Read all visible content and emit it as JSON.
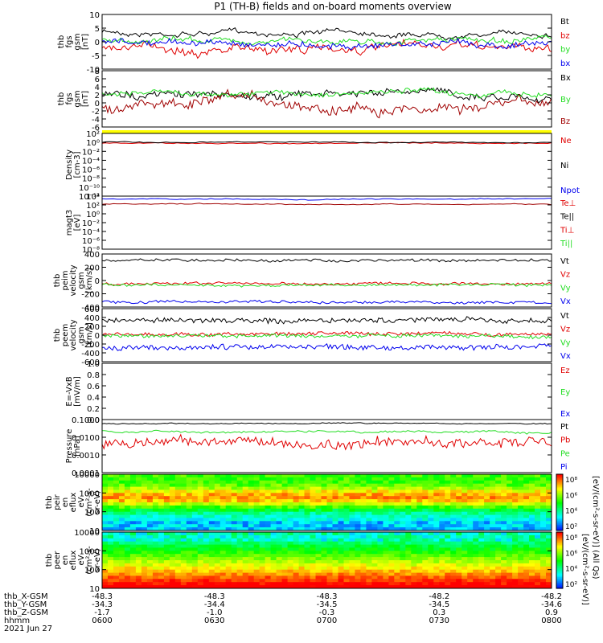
{
  "title": "P1 (TH-B) fields and on-board moments overview",
  "colors": {
    "black": "#000000",
    "red": "#e00000",
    "green": "#22dd22",
    "blue": "#0000ee",
    "darkred": "#a00000",
    "yellow": "#ffff00"
  },
  "panels": [
    {
      "id": "fgs_gsm",
      "ylabel": [
        "thb",
        "fgs",
        "gsm",
        "[nT]"
      ],
      "ticks": [
        "10",
        "5",
        "0",
        "-5",
        "-10"
      ],
      "legend": [
        {
          "text": "Bt",
          "color": "black"
        },
        {
          "text": "bz",
          "color": "red"
        },
        {
          "text": "by",
          "color": "green"
        },
        {
          "text": "bx",
          "color": "blue"
        }
      ]
    },
    {
      "id": "fgs_gsm_cal",
      "ylabel": [
        "thb",
        "fgs",
        "gsm",
        "[nT]"
      ],
      "ticks": [
        "8",
        "6",
        "4",
        "2",
        "0",
        "-2",
        "-4",
        "-6"
      ],
      "legend": [
        {
          "text": "Bx",
          "color": "black"
        },
        {
          "text": "By",
          "color": "green"
        },
        {
          "text": "Bz",
          "color": "darkred"
        }
      ]
    },
    {
      "id": "density",
      "ylabel": [
        "Density",
        "[cm-3]"
      ],
      "ticks": [
        "10²",
        "10⁰",
        "10⁻²",
        "10⁻⁴",
        "10⁻⁶",
        "10⁻⁸",
        "10⁻¹⁰",
        "10⁻¹²"
      ],
      "legend": [
        {
          "text": "Ne",
          "color": "red"
        },
        {
          "text": "Ni",
          "color": "black"
        },
        {
          "text": "Npot",
          "color": "blue"
        }
      ]
    },
    {
      "id": "temp",
      "ylabel": [
        "magt3",
        "[eV]"
      ],
      "ticks": [
        "10⁴",
        "10²",
        "10⁰",
        "10⁻²",
        "10⁻⁴",
        "10⁻⁶",
        "10⁻⁸"
      ],
      "legend": [
        {
          "text": "Te⊥",
          "color": "red"
        },
        {
          "text": "Te||",
          "color": "black"
        },
        {
          "text": "Ti⊥",
          "color": "red"
        },
        {
          "text": "Ti||",
          "color": "green"
        }
      ]
    },
    {
      "id": "peim_vel",
      "ylabel": [
        "thb",
        "peim",
        "velocity",
        "gsm",
        "[km/s]"
      ],
      "ticks": [
        "400",
        "200",
        "0",
        "-200",
        "-400"
      ],
      "legend": [
        {
          "text": "Vt",
          "color": "black"
        },
        {
          "text": "Vz",
          "color": "red"
        },
        {
          "text": "Vy",
          "color": "green"
        },
        {
          "text": "Vx",
          "color": "blue"
        }
      ]
    },
    {
      "id": "peem_vel",
      "ylabel": [
        "thb",
        "peem",
        "velocity",
        "gsm",
        "[km/s]"
      ],
      "ticks": [
        "600",
        "400",
        "200",
        "0",
        "-200",
        "-400",
        "-600"
      ],
      "legend": [
        {
          "text": "Vt",
          "color": "black"
        },
        {
          "text": "Vz",
          "color": "red"
        },
        {
          "text": "Vy",
          "color": "green"
        },
        {
          "text": "Vx",
          "color": "blue"
        }
      ]
    },
    {
      "id": "efield",
      "ylabel": [
        "E=-VxB",
        "[mV/m]"
      ],
      "ticks": [
        "1.0",
        "0.8",
        "0.6",
        "0.4",
        "0.2",
        "0.0"
      ],
      "legend": [
        {
          "text": "Ez",
          "color": "red"
        },
        {
          "text": "Ey",
          "color": "green"
        },
        {
          "text": "Ex",
          "color": "blue"
        }
      ]
    },
    {
      "id": "pressure",
      "ylabel": [
        "Pressure",
        "[nPa]"
      ],
      "ticks": [
        "0.1000",
        "0.0100",
        "0.0010",
        "0.0001"
      ],
      "legend": [
        {
          "text": "Pt",
          "color": "black"
        },
        {
          "text": "Pb",
          "color": "red"
        },
        {
          "text": "Pe",
          "color": "green"
        },
        {
          "text": "Pi",
          "color": "blue"
        }
      ]
    },
    {
      "id": "peir_spec",
      "ylabel": [
        "thb",
        "peir",
        "en",
        "eflux",
        "eV",
        "(cm²-s-",
        "sr-eV)"
      ],
      "ticks": [
        "10000",
        "1000",
        "100",
        "10"
      ]
    },
    {
      "id": "peer_spec",
      "ylabel": [
        "thb",
        "peer",
        "en",
        "eflux",
        "eV",
        "(cm²-s-",
        "sr-eV)"
      ],
      "ticks": [
        "10000",
        "1000",
        "100",
        "10"
      ]
    }
  ],
  "colorbar": {
    "ticks": [
      "10⁸",
      "10⁶",
      "10⁴",
      "10²"
    ],
    "label": "[eV/(cm²-s-sr-eV)] (All Qs)",
    "label2": "[eV/(cm²-s-sr-eV)]"
  },
  "xaxis": {
    "rows": [
      {
        "label": "thb_X-GSM",
        "values": [
          "-48.3",
          "-48.3",
          "-48.3",
          "-48.2",
          "-48.2"
        ]
      },
      {
        "label": "thb_Y-GSM",
        "values": [
          "-34.3",
          "-34.4",
          "-34.5",
          "-34.5",
          "-34.6"
        ]
      },
      {
        "label": "thb_Z-GSM",
        "values": [
          "-1.7",
          "-1.0",
          "-0.3",
          "0.3",
          "0.9"
        ]
      },
      {
        "label": "hhmm",
        "values": [
          "0600",
          "0630",
          "0700",
          "0730",
          "0800"
        ]
      }
    ],
    "date": "2021 Jun 27"
  },
  "chart_data": {
    "type": "line",
    "title": "P1 (TH-B) fields and on-board moments overview",
    "x": [
      "0600",
      "0630",
      "0700",
      "0730",
      "0800"
    ],
    "xlabel": "hhmm",
    "series": [
      {
        "name": "Bt",
        "values": [
          3,
          4,
          5,
          5,
          6
        ]
      },
      {
        "name": "bz",
        "values": [
          2,
          1,
          -3,
          -3,
          -3
        ]
      },
      {
        "name": "by",
        "values": [
          1,
          2,
          2,
          2,
          3
        ]
      },
      {
        "name": "bx",
        "values": [
          -1,
          0,
          0,
          1,
          -1
        ]
      },
      {
        "name": "Vt",
        "values": [
          320,
          310,
          300,
          300,
          290
        ]
      },
      {
        "name": "Vx",
        "values": [
          -300,
          -300,
          -310,
          -300,
          -300
        ]
      },
      {
        "name": "Pt",
        "values": [
          0.1,
          0.1,
          0.1,
          0.1,
          0.1
        ]
      },
      {
        "name": "Pb",
        "values": [
          0.002,
          0.004,
          0.008,
          0.01,
          0.01
        ]
      },
      {
        "name": "Pe",
        "values": [
          0.03,
          0.03,
          0.03,
          0.03,
          0.03
        ]
      }
    ]
  }
}
